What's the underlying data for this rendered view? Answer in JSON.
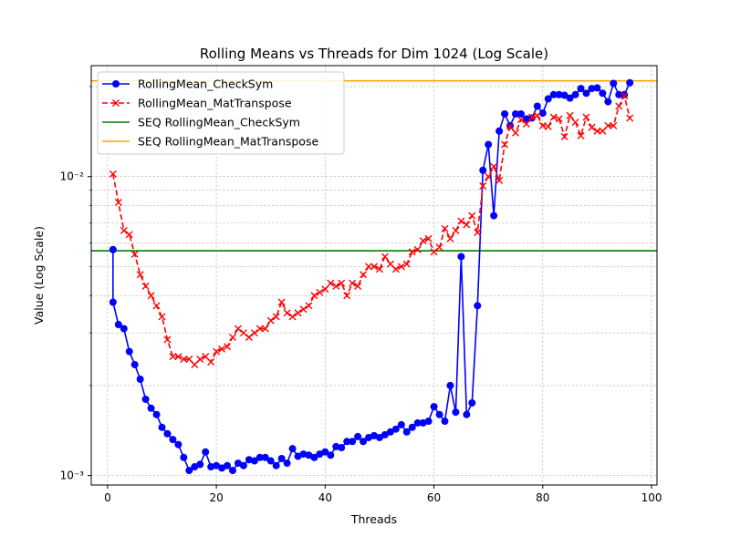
{
  "chart_data": {
    "type": "line",
    "title": "Rolling Means vs Threads for Dim 1024 (Log Scale)",
    "xlabel": "Threads",
    "ylabel": "Value (Log Scale)",
    "xlim": [
      -3,
      101
    ],
    "ylim": [
      0.00093,
      0.0235
    ],
    "yscale": "log",
    "grid": true,
    "legend_position": "top-left",
    "x_ticks": [
      0,
      20,
      40,
      60,
      80,
      100
    ],
    "y_ticks": [
      0.001,
      0.01
    ],
    "y_tick_labels": [
      "10⁻³",
      "10⁻²"
    ],
    "series": [
      {
        "name": "RollingMean_CheckSym",
        "color": "#0000ff",
        "style": "solid",
        "marker": "circle",
        "x": [
          1,
          1,
          2,
          3,
          4,
          5,
          6,
          7,
          8,
          9,
          10,
          11,
          12,
          13,
          14,
          15,
          16,
          17,
          18,
          19,
          20,
          21,
          22,
          23,
          24,
          25,
          26,
          27,
          28,
          29,
          30,
          31,
          32,
          33,
          34,
          35,
          36,
          37,
          38,
          39,
          40,
          41,
          42,
          43,
          44,
          45,
          46,
          47,
          48,
          49,
          50,
          51,
          52,
          53,
          54,
          55,
          56,
          57,
          58,
          59,
          60,
          61,
          62,
          63,
          64,
          65,
          66,
          67,
          68,
          69,
          70,
          71,
          72,
          73,
          74,
          75,
          76,
          77,
          78,
          79,
          80,
          81,
          82,
          83,
          84,
          85,
          86,
          87,
          88,
          89,
          90,
          91,
          92,
          93,
          94,
          95,
          96
        ],
        "y": [
          0.0057,
          0.0038,
          0.0032,
          0.0031,
          0.0026,
          0.00235,
          0.0021,
          0.0018,
          0.00168,
          0.0016,
          0.00145,
          0.00138,
          0.00132,
          0.00127,
          0.00115,
          0.00104,
          0.00107,
          0.00109,
          0.0012,
          0.00107,
          0.00108,
          0.00106,
          0.00108,
          0.00104,
          0.0011,
          0.00108,
          0.00113,
          0.00112,
          0.00115,
          0.00115,
          0.00112,
          0.00108,
          0.00114,
          0.0011,
          0.00123,
          0.00116,
          0.00118,
          0.00117,
          0.00115,
          0.00118,
          0.0012,
          0.00117,
          0.00125,
          0.00124,
          0.0013,
          0.0013,
          0.00135,
          0.0013,
          0.00134,
          0.00136,
          0.00134,
          0.00137,
          0.0014,
          0.00143,
          0.00148,
          0.0014,
          0.00145,
          0.0015,
          0.0015,
          0.00152,
          0.0017,
          0.0016,
          0.00152,
          0.002,
          0.00163,
          0.0054,
          0.0016,
          0.00175,
          0.0037,
          0.0105,
          0.0128,
          0.0074,
          0.0142,
          0.0162,
          0.0148,
          0.0162,
          0.0162,
          0.0156,
          0.0157,
          0.0172,
          0.0163,
          0.0182,
          0.0188,
          0.0188,
          0.0187,
          0.0183,
          0.0188,
          0.0197,
          0.019,
          0.0197,
          0.0198,
          0.019,
          0.0178,
          0.0205,
          0.0188,
          0.0188,
          0.0206
        ]
      },
      {
        "name": "RollingMean_MatTranspose",
        "color": "#ff0000",
        "style": "dashed",
        "marker": "x",
        "x": [
          1,
          2,
          3,
          4,
          5,
          6,
          7,
          8,
          9,
          10,
          11,
          12,
          13,
          14,
          15,
          16,
          17,
          18,
          19,
          20,
          21,
          22,
          23,
          24,
          25,
          26,
          27,
          28,
          29,
          30,
          31,
          32,
          33,
          34,
          35,
          36,
          37,
          38,
          39,
          40,
          41,
          42,
          43,
          44,
          45,
          46,
          47,
          48,
          49,
          50,
          51,
          52,
          53,
          54,
          55,
          56,
          57,
          58,
          59,
          60,
          61,
          62,
          63,
          64,
          65,
          66,
          67,
          68,
          69,
          70,
          71,
          72,
          73,
          74,
          75,
          76,
          77,
          78,
          79,
          80,
          81,
          82,
          83,
          84,
          85,
          86,
          87,
          88,
          89,
          90,
          91,
          92,
          93,
          94,
          95,
          96
        ],
        "y": [
          0.0102,
          0.0082,
          0.0066,
          0.0064,
          0.0055,
          0.0047,
          0.0043,
          0.004,
          0.0037,
          0.0034,
          0.00285,
          0.0025,
          0.0025,
          0.00245,
          0.00245,
          0.00235,
          0.00245,
          0.0025,
          0.0024,
          0.0026,
          0.00265,
          0.0027,
          0.0029,
          0.0031,
          0.003,
          0.0029,
          0.003,
          0.0031,
          0.0031,
          0.0033,
          0.0034,
          0.0038,
          0.0035,
          0.0034,
          0.0035,
          0.0036,
          0.0037,
          0.004,
          0.0041,
          0.0042,
          0.0044,
          0.0043,
          0.0044,
          0.004,
          0.0044,
          0.0043,
          0.0047,
          0.005,
          0.005,
          0.0049,
          0.0054,
          0.0051,
          0.0049,
          0.005,
          0.0051,
          0.0056,
          0.0057,
          0.0061,
          0.0062,
          0.0056,
          0.0058,
          0.0067,
          0.0062,
          0.0066,
          0.0071,
          0.0069,
          0.0074,
          0.0065,
          0.0093,
          0.01,
          0.0108,
          0.0097,
          0.0128,
          0.0147,
          0.014,
          0.0155,
          0.015,
          0.0158,
          0.016,
          0.0148,
          0.0147,
          0.0158,
          0.0156,
          0.0136,
          0.016,
          0.0152,
          0.0137,
          0.0158,
          0.0146,
          0.0142,
          0.0142,
          0.0148,
          0.0148,
          0.0172,
          0.0186,
          0.0157
        ]
      },
      {
        "name": "SEQ RollingMean_CheckSym",
        "color": "#008000",
        "style": "hline",
        "y": 0.00565
      },
      {
        "name": "SEQ RollingMean_MatTranspose",
        "color": "#ffa500",
        "style": "hline",
        "y": 0.0209
      }
    ]
  }
}
